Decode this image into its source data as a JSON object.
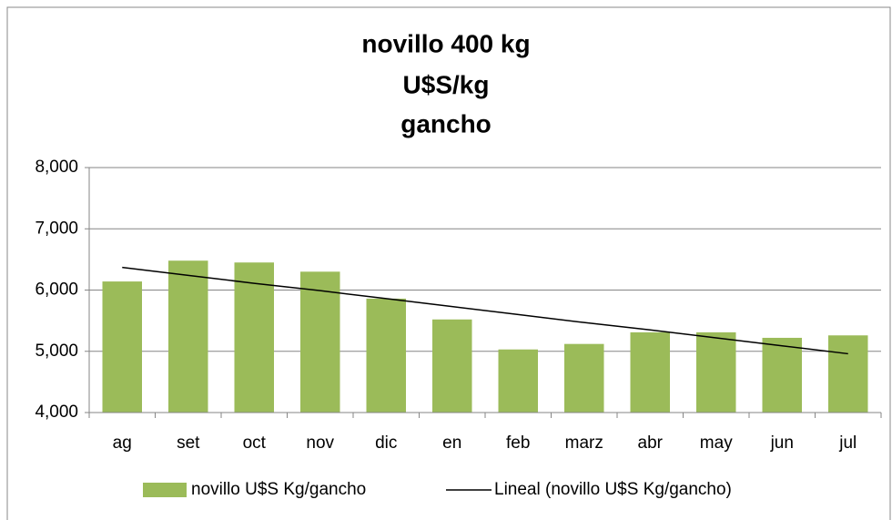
{
  "chart_data": {
    "type": "bar",
    "title": [
      "novillo 400 kg",
      "U$S/kg",
      "gancho"
    ],
    "categories": [
      "ag",
      "set",
      "oct",
      "nov",
      "dic",
      "en",
      "feb",
      "marz",
      "abr",
      "may",
      "jun",
      "jul"
    ],
    "series": [
      {
        "name": "novillo U$S Kg/gancho",
        "color": "#9bbb59",
        "type": "bar",
        "values": [
          6.14,
          6.48,
          6.45,
          6.3,
          5.86,
          5.52,
          5.03,
          5.12,
          5.31,
          5.31,
          5.22,
          5.26
        ]
      },
      {
        "name": "Lineal (novillo U$S Kg/gancho)",
        "color": "#000000",
        "type": "line",
        "values": [
          6.37,
          6.24,
          6.11,
          5.99,
          5.86,
          5.73,
          5.6,
          5.47,
          5.35,
          5.22,
          5.09,
          4.96
        ]
      }
    ],
    "ylim": [
      4,
      8
    ],
    "yticks": [
      {
        "value": 4,
        "label": "4,000"
      },
      {
        "value": 5,
        "label": "5,000"
      },
      {
        "value": 6,
        "label": "6,000"
      },
      {
        "value": 7,
        "label": "7,000"
      },
      {
        "value": 8,
        "label": "8,000"
      }
    ],
    "grid": true,
    "legend": "bottom"
  }
}
